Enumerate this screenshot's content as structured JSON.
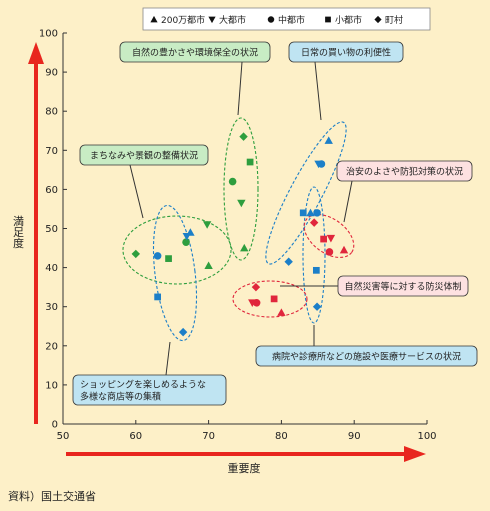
{
  "source_note": "資料）国土交通省",
  "colors": {
    "background": "#fdf0c8",
    "axis_arrow": "#e8261e",
    "green": "#2e9e3e",
    "blue": "#1c7fc8",
    "red": "#e0263c",
    "green_box": "#c8ecc4",
    "blue_box": "#bfe4f2",
    "red_box": "#fde1e1"
  },
  "chart_data": {
    "type": "scatter",
    "xlabel": "重要度",
    "ylabel": "満足度",
    "xlim": [
      50,
      100
    ],
    "ylim": [
      0,
      100
    ],
    "xticks": [
      50,
      60,
      70,
      80,
      90,
      100
    ],
    "yticks": [
      0,
      10,
      20,
      30,
      40,
      50,
      60,
      70,
      80,
      90,
      100
    ],
    "grid": false,
    "legend_position": "top-right",
    "legend": [
      {
        "label": "200万都市",
        "marker": "triangle-up"
      },
      {
        "label": "大都市",
        "marker": "triangle-down"
      },
      {
        "label": "中都市",
        "marker": "circle"
      },
      {
        "label": "小都市",
        "marker": "square"
      },
      {
        "label": "町村",
        "marker": "diamond"
      }
    ],
    "groups": [
      {
        "label": "自然の豊かさや環境保全の状況",
        "color": "green",
        "points": [
          {
            "marker": "triangle-up",
            "x": 74.9,
            "y": 45
          },
          {
            "marker": "triangle-down",
            "x": 74.5,
            "y": 56.5
          },
          {
            "marker": "circle",
            "x": 73.3,
            "y": 62
          },
          {
            "marker": "square",
            "x": 75.7,
            "y": 67
          },
          {
            "marker": "diamond",
            "x": 74.8,
            "y": 73.5
          }
        ]
      },
      {
        "label": "まちなみや景観の整備状況",
        "color": "green",
        "points": [
          {
            "marker": "triangle-up",
            "x": 70,
            "y": 40.5
          },
          {
            "marker": "triangle-down",
            "x": 69.8,
            "y": 51
          },
          {
            "marker": "circle",
            "x": 66.9,
            "y": 46.5
          },
          {
            "marker": "square",
            "x": 64.5,
            "y": 42.3
          },
          {
            "marker": "diamond",
            "x": 60,
            "y": 43.5
          }
        ]
      },
      {
        "label": "日常の買い物の利便性",
        "color": "blue",
        "points": [
          {
            "marker": "triangle-up",
            "x": 86.5,
            "y": 72.5
          },
          {
            "marker": "triangle-down",
            "x": 85.1,
            "y": 66.5
          },
          {
            "marker": "circle",
            "x": 85.5,
            "y": 66.5
          },
          {
            "marker": "square",
            "x": 83,
            "y": 54
          },
          {
            "marker": "diamond",
            "x": 81,
            "y": 41.5
          }
        ]
      },
      {
        "label": "ショッピングを楽しめるような多様な商店等の集積",
        "color": "blue",
        "points": [
          {
            "marker": "triangle-up",
            "x": 67.5,
            "y": 49
          },
          {
            "marker": "triangle-down",
            "x": 67,
            "y": 48
          },
          {
            "marker": "circle",
            "x": 63,
            "y": 43
          },
          {
            "marker": "square",
            "x": 63,
            "y": 32.5
          },
          {
            "marker": "diamond",
            "x": 66.5,
            "y": 23.5
          }
        ]
      },
      {
        "label": "病院や診療所などの施設や医療サービスの状況",
        "color": "blue",
        "points": [
          {
            "marker": "triangle-up",
            "x": 84,
            "y": 54
          },
          {
            "marker": "circle",
            "x": 84.9,
            "y": 54
          },
          {
            "marker": "square",
            "x": 84.8,
            "y": 39.3
          },
          {
            "marker": "diamond",
            "x": 84.9,
            "y": 30
          }
        ]
      },
      {
        "label": "治安のよさや防犯対策の状況",
        "color": "red",
        "points": [
          {
            "marker": "triangle-up",
            "x": 88.6,
            "y": 44.5
          },
          {
            "marker": "triangle-down",
            "x": 86.8,
            "y": 47.5
          },
          {
            "marker": "circle",
            "x": 86.6,
            "y": 44
          },
          {
            "marker": "square",
            "x": 85.8,
            "y": 47.3
          },
          {
            "marker": "diamond",
            "x": 84.5,
            "y": 51.5
          }
        ]
      },
      {
        "label": "自然災害等に対する防災体制",
        "color": "red",
        "points": [
          {
            "marker": "triangle-up",
            "x": 80,
            "y": 28.5
          },
          {
            "marker": "triangle-down",
            "x": 76,
            "y": 31
          },
          {
            "marker": "circle",
            "x": 76.6,
            "y": 31
          },
          {
            "marker": "square",
            "x": 79,
            "y": 32
          },
          {
            "marker": "diamond",
            "x": 76.5,
            "y": 35
          }
        ]
      }
    ]
  }
}
